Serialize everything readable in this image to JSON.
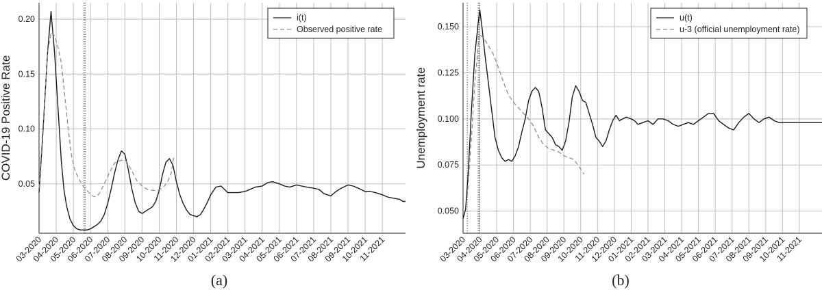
{
  "colors": {
    "grid": "#bdbdbd",
    "axis": "#222222",
    "solid": "#1a1a1a",
    "dashed": "#8c8c8c",
    "vline": "#555555"
  },
  "chart_data": [
    {
      "type": "line",
      "caption": "(a)",
      "xlabel": "",
      "ylabel": "COVID-19 Positive Rate",
      "xlim": [
        0,
        21.35
      ],
      "ylim": [
        0.005,
        0.215
      ],
      "yticks": [
        0.05,
        0.1,
        0.15,
        0.2
      ],
      "ytick_labels": [
        "0.05",
        "0.10",
        "0.15",
        "0.20"
      ],
      "xtick_labels": [
        "03-2020",
        "04-2020",
        "05-2020",
        "06-2020",
        "07-2020",
        "08-2020",
        "09-2020",
        "10-2020",
        "11-2020",
        "12-2020",
        "01-2021",
        "02-2021",
        "03-2021",
        "04-2021",
        "05-2021",
        "06-2021",
        "07-2021",
        "08-2021",
        "09-2021",
        "10-2021",
        "11-2021"
      ],
      "vlines": [
        0,
        2.62,
        2.68
      ],
      "legend_position": "top-right",
      "grid": true,
      "series": [
        {
          "name": "i(t)",
          "style": "solid",
          "x": [
            0,
            0.2,
            0.5,
            0.7,
            0.9,
            1.1,
            1.3,
            1.45,
            1.6,
            1.8,
            2.0,
            2.2,
            2.4,
            2.6,
            2.8,
            3.0,
            3.2,
            3.4,
            3.6,
            3.8,
            4.0,
            4.2,
            4.4,
            4.6,
            4.8,
            5.0,
            5.2,
            5.4,
            5.6,
            5.8,
            6.0,
            6.2,
            6.4,
            6.6,
            6.8,
            7.0,
            7.2,
            7.4,
            7.6,
            7.8,
            8.0,
            8.2,
            8.4,
            8.6,
            8.8,
            9.0,
            9.2,
            9.4,
            9.6,
            9.8,
            10.0,
            10.3,
            10.6,
            11.0,
            11.3,
            11.6,
            12.0,
            12.3,
            12.6,
            13.0,
            13.3,
            13.6,
            14.0,
            14.3,
            14.6,
            15.0,
            15.3,
            15.6,
            16.0,
            16.3,
            16.6,
            17.0,
            17.3,
            17.6,
            18.0,
            18.3,
            18.6,
            19.0,
            19.3,
            19.6,
            20.0,
            20.3,
            20.6,
            21.0,
            21.2,
            21.35
          ],
          "y": [
            0.042,
            0.09,
            0.17,
            0.207,
            0.17,
            0.12,
            0.07,
            0.045,
            0.03,
            0.018,
            0.012,
            0.009,
            0.008,
            0.008,
            0.008,
            0.009,
            0.011,
            0.013,
            0.016,
            0.022,
            0.032,
            0.045,
            0.06,
            0.072,
            0.08,
            0.077,
            0.063,
            0.046,
            0.033,
            0.025,
            0.023,
            0.025,
            0.027,
            0.029,
            0.034,
            0.044,
            0.059,
            0.07,
            0.073,
            0.067,
            0.052,
            0.04,
            0.032,
            0.026,
            0.022,
            0.021,
            0.02,
            0.022,
            0.027,
            0.033,
            0.04,
            0.047,
            0.048,
            0.042,
            0.042,
            0.042,
            0.043,
            0.045,
            0.047,
            0.048,
            0.051,
            0.052,
            0.05,
            0.048,
            0.047,
            0.049,
            0.048,
            0.047,
            0.046,
            0.045,
            0.041,
            0.039,
            0.043,
            0.046,
            0.049,
            0.048,
            0.046,
            0.043,
            0.043,
            0.042,
            0.04,
            0.038,
            0.037,
            0.036,
            0.034,
            0.034
          ]
        },
        {
          "name": "Observed positive rate",
          "style": "dashed",
          "x": [
            0,
            0.3,
            0.5,
            0.7,
            0.9,
            1.1,
            1.3,
            1.5,
            1.7,
            1.9,
            2.1,
            2.3,
            2.6,
            2.9,
            3.1,
            3.3,
            3.5,
            3.8,
            4.1,
            4.4,
            4.7,
            5.0,
            5.2,
            5.4,
            5.7,
            6.0,
            6.3,
            6.6,
            6.9,
            7.2,
            7.5,
            7.7,
            7.85
          ],
          "y": [
            0.046,
            0.12,
            0.17,
            0.188,
            0.185,
            0.175,
            0.16,
            0.13,
            0.1,
            0.075,
            0.062,
            0.055,
            0.047,
            0.042,
            0.039,
            0.038,
            0.041,
            0.05,
            0.06,
            0.069,
            0.071,
            0.072,
            0.068,
            0.062,
            0.053,
            0.048,
            0.045,
            0.044,
            0.044,
            0.046,
            0.052,
            0.06,
            0.075
          ]
        }
      ]
    },
    {
      "type": "line",
      "caption": "(b)",
      "xlabel": "",
      "ylabel": "Unemployment rate",
      "xlim": [
        0,
        21.35
      ],
      "ylim": [
        0.038,
        0.163
      ],
      "yticks": [
        0.05,
        0.075,
        0.1,
        0.125,
        0.15
      ],
      "ytick_labels": [
        "0.050",
        "0.075",
        "0.100",
        "0.125",
        "0.150"
      ],
      "xtick_labels": [
        "03-2020",
        "04-2020",
        "05-2020",
        "06-2020",
        "07-2020",
        "08-2020",
        "09-2020",
        "10-2020",
        "11-2020",
        "12-2020",
        "01-2021",
        "02-2021",
        "03-2021",
        "04-2021",
        "05-2021",
        "06-2021",
        "07-2021",
        "08-2021",
        "09-2021",
        "10-2021",
        "11-2021"
      ],
      "vlines": [
        0.25,
        0.9,
        0.96
      ],
      "legend_position": "top-right",
      "grid": true,
      "series": [
        {
          "name": "u(t)",
          "style": "solid",
          "x": [
            0,
            0.15,
            0.3,
            0.5,
            0.7,
            0.9,
            1.0,
            1.15,
            1.3,
            1.5,
            1.7,
            1.9,
            2.1,
            2.3,
            2.5,
            2.7,
            2.9,
            3.1,
            3.3,
            3.5,
            3.7,
            3.9,
            4.1,
            4.3,
            4.5,
            4.7,
            4.9,
            5.1,
            5.3,
            5.5,
            5.7,
            5.9,
            6.1,
            6.3,
            6.5,
            6.7,
            6.9,
            7.1,
            7.3,
            7.5,
            7.7,
            7.9,
            8.1,
            8.3,
            8.5,
            8.7,
            8.9,
            9.1,
            9.3,
            9.5,
            9.7,
            10.0,
            10.2,
            10.4,
            10.7,
            11.0,
            11.3,
            11.6,
            11.9,
            12.2,
            12.5,
            12.8,
            13.1,
            13.4,
            13.7,
            14.0,
            14.3,
            14.6,
            14.9,
            15.2,
            15.5,
            15.8,
            16.1,
            16.4,
            16.7,
            17.0,
            17.3,
            17.6,
            17.9,
            18.2,
            18.5,
            18.8,
            19.1,
            19.4,
            19.7,
            20.0,
            20.3,
            20.6,
            20.9,
            21.2,
            21.35
          ],
          "y": [
            0.046,
            0.051,
            0.07,
            0.105,
            0.135,
            0.152,
            0.159,
            0.148,
            0.135,
            0.12,
            0.105,
            0.09,
            0.083,
            0.079,
            0.077,
            0.078,
            0.077,
            0.08,
            0.085,
            0.093,
            0.1,
            0.11,
            0.115,
            0.117,
            0.115,
            0.106,
            0.094,
            0.092,
            0.09,
            0.086,
            0.085,
            0.083,
            0.088,
            0.098,
            0.112,
            0.118,
            0.115,
            0.11,
            0.109,
            0.103,
            0.097,
            0.09,
            0.088,
            0.085,
            0.088,
            0.094,
            0.099,
            0.102,
            0.099,
            0.1,
            0.101,
            0.1,
            0.099,
            0.097,
            0.098,
            0.099,
            0.097,
            0.1,
            0.1,
            0.099,
            0.097,
            0.096,
            0.097,
            0.098,
            0.097,
            0.099,
            0.101,
            0.103,
            0.103,
            0.099,
            0.097,
            0.095,
            0.094,
            0.098,
            0.101,
            0.103,
            0.1,
            0.098,
            0.1,
            0.101,
            0.099,
            0.098,
            0.098,
            0.098,
            0.098,
            0.098,
            0.098,
            0.098,
            0.098,
            0.098,
            0.098
          ],
          "note": ""
        },
        {
          "name": "u-3 (official unemployment rate)",
          "style": "dashed",
          "x": [
            0.25,
            0.5,
            0.7,
            0.96,
            1.2,
            1.5,
            1.8,
            2.1,
            2.4,
            2.7,
            3.0,
            3.3,
            3.6,
            3.9,
            4.2,
            4.5,
            4.8,
            5.1,
            5.4,
            5.7,
            6.0,
            6.3,
            6.6,
            6.9,
            7.2
          ],
          "y": [
            0.058,
            0.09,
            0.12,
            0.146,
            0.144,
            0.14,
            0.135,
            0.128,
            0.12,
            0.113,
            0.109,
            0.106,
            0.103,
            0.1,
            0.096,
            0.09,
            0.086,
            0.084,
            0.083,
            0.082,
            0.08,
            0.079,
            0.078,
            0.074,
            0.07
          ]
        }
      ]
    }
  ]
}
